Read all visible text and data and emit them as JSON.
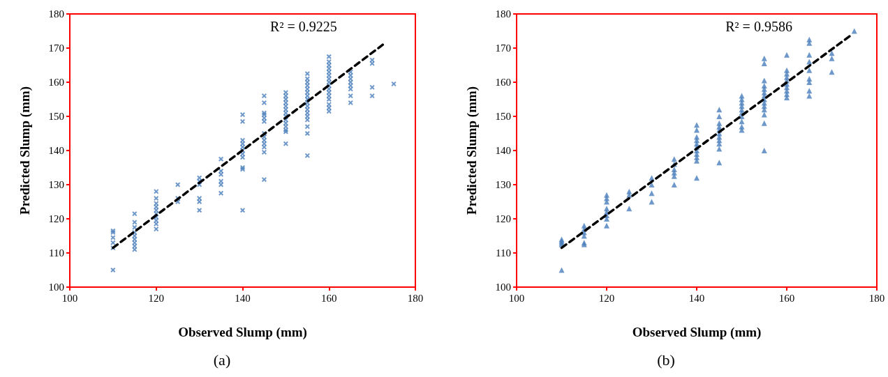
{
  "chart_data": [
    {
      "type": "scatter",
      "xlabel": "Observed Slump (mm)",
      "ylabel": "Predicted Slump (mm)",
      "xlim": [
        100,
        180
      ],
      "xticks": [
        100,
        120,
        140,
        160,
        180
      ],
      "ylim": [
        100,
        180
      ],
      "yticks": [
        100,
        110,
        120,
        130,
        140,
        150,
        160,
        170,
        180
      ],
      "annotations": [
        "R² = 0.9225",
        "(a)"
      ],
      "series": [
        {
          "marker": "cross",
          "color": "#4a7ebb",
          "x": [
            110,
            110,
            110,
            110,
            110,
            110,
            115,
            115,
            115,
            115,
            115,
            115,
            115,
            115,
            115,
            120,
            120,
            120,
            120,
            120,
            120,
            120,
            120,
            120,
            120,
            125,
            125,
            125,
            130,
            130,
            130,
            130,
            130,
            130,
            135,
            135,
            135,
            135,
            135,
            135,
            140,
            140,
            140,
            140,
            140,
            140,
            140,
            140,
            140,
            140,
            140,
            145,
            145,
            145,
            145,
            145,
            145,
            145,
            145,
            145,
            145,
            145,
            145,
            145,
            150,
            150,
            150,
            150,
            150,
            150,
            150,
            150,
            150,
            150,
            150,
            150,
            150,
            150,
            155,
            155,
            155,
            155,
            155,
            155,
            155,
            155,
            155,
            155,
            155,
            155,
            155,
            155,
            155,
            155,
            155,
            160,
            160,
            160,
            160,
            160,
            160,
            160,
            160,
            160,
            160,
            160,
            160,
            160,
            160,
            160,
            160,
            165,
            165,
            165,
            165,
            165,
            165,
            165,
            165,
            170,
            170,
            170,
            170,
            175
          ],
          "values": [
            105,
            111.5,
            113,
            114.5,
            116,
            116.5,
            111,
            112,
            113,
            114,
            115,
            116,
            117.5,
            119,
            121.5,
            117,
            118.5,
            119.5,
            120.5,
            121.5,
            122.5,
            123.5,
            124.5,
            126,
            128,
            125,
            126,
            130,
            122.5,
            125,
            126,
            130,
            131,
            132,
            127.5,
            130,
            131,
            133,
            134,
            137.5,
            122.5,
            134.5,
            135,
            138,
            139,
            140,
            141,
            142,
            143,
            148.5,
            150.5,
            131.5,
            139.5,
            141,
            142,
            143,
            144,
            145,
            148.5,
            149.5,
            150.5,
            151,
            154,
            156,
            142,
            145.5,
            146,
            147,
            148,
            149,
            150,
            151,
            152,
            153,
            154,
            155,
            156,
            157,
            138.5,
            145,
            147,
            149,
            150,
            151,
            152,
            153,
            154,
            155,
            156,
            157,
            158,
            159,
            160,
            161,
            162.5,
            151.5,
            152.5,
            153.5,
            155,
            156,
            157,
            158,
            159,
            160,
            161,
            162,
            163,
            164,
            165,
            166,
            167.5,
            154,
            156,
            158,
            159,
            160,
            161,
            162,
            163,
            156,
            158.5,
            165.5,
            166.5,
            159.5
          ]
        },
        {
          "type": "line",
          "marker": "none",
          "line_style": "dashed",
          "color": "#000000",
          "x": [
            110,
            173
          ],
          "values": [
            111.5,
            171.5
          ]
        }
      ]
    },
    {
      "type": "scatter",
      "xlabel": "Observed Slump (mm)",
      "ylabel": "Predicted Slump (mm)",
      "xlim": [
        100,
        180
      ],
      "xticks": [
        100,
        120,
        140,
        160,
        180
      ],
      "ylim": [
        100,
        180
      ],
      "yticks": [
        100,
        110,
        120,
        130,
        140,
        150,
        160,
        170,
        180
      ],
      "annotations": [
        "R² = 0.9586",
        "(b)"
      ],
      "series": [
        {
          "marker": "triangle",
          "color": "#4a7ebb",
          "x": [
            110,
            110,
            110,
            110,
            110,
            115,
            115,
            115,
            115,
            115,
            115,
            120,
            120,
            120,
            120,
            120,
            120,
            120,
            120,
            125,
            125,
            125,
            130,
            130,
            130,
            130,
            135,
            135,
            135,
            135,
            135,
            135,
            140,
            140,
            140,
            140,
            140,
            140,
            140,
            140,
            140,
            140,
            140,
            145,
            145,
            145,
            145,
            145,
            145,
            145,
            145,
            145,
            145,
            145,
            150,
            150,
            150,
            150,
            150,
            150,
            150,
            150,
            150,
            150,
            155,
            155,
            155,
            155,
            155,
            155,
            155,
            155,
            155,
            155,
            155,
            155,
            155,
            155,
            160,
            160,
            160,
            160,
            160,
            160,
            160,
            160,
            160,
            160,
            165,
            165,
            165,
            165,
            165,
            165,
            165,
            165,
            165,
            170,
            170,
            170,
            175
          ],
          "values": [
            105,
            112.5,
            113,
            113.5,
            114,
            112.5,
            113,
            115,
            116,
            117,
            118,
            118,
            120,
            121,
            122,
            123,
            125,
            126,
            127,
            123,
            127,
            128,
            125,
            127.5,
            130,
            132,
            130,
            132.5,
            133.5,
            134.5,
            136,
            137.5,
            132,
            137,
            138,
            139,
            140,
            141,
            142,
            143,
            144,
            146,
            147.5,
            136.5,
            140.5,
            142,
            143,
            144,
            145,
            146,
            147,
            148,
            150,
            152,
            146,
            147,
            148.5,
            150,
            151,
            152,
            153,
            154,
            155,
            156,
            140,
            148,
            150.5,
            152,
            153,
            154,
            155,
            156,
            157,
            158,
            159,
            160.5,
            165.5,
            167,
            155.5,
            156.5,
            157.5,
            158.5,
            159.5,
            160.5,
            161.5,
            162.5,
            163.5,
            168,
            156,
            157.5,
            160,
            161,
            163.5,
            166,
            168,
            171.5,
            172.5,
            163,
            167,
            168.5,
            175
          ]
        },
        {
          "type": "line",
          "marker": "none",
          "line_style": "dashed",
          "color": "#000000",
          "x": [
            110,
            174.5
          ],
          "values": [
            111.5,
            174
          ]
        }
      ]
    }
  ]
}
